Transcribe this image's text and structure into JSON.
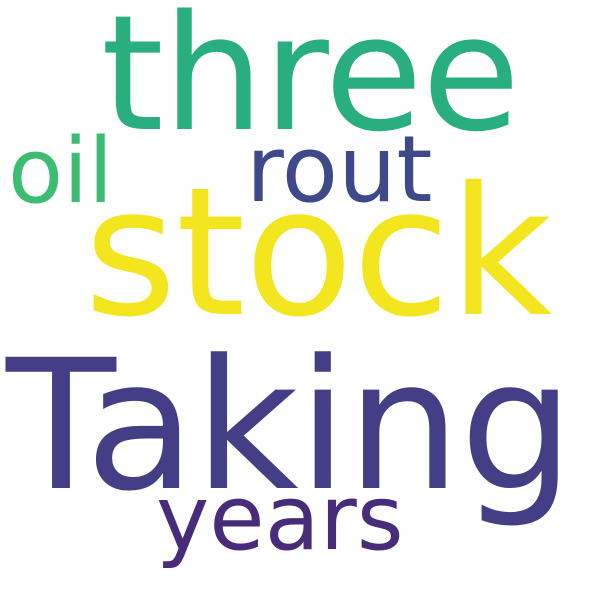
{
  "words": {
    "three": {
      "text": "three",
      "color": "#29af7f"
    },
    "oil": {
      "text": "oil",
      "color": "#3dbc74"
    },
    "rout": {
      "text": "rout",
      "color": "#3e4989"
    },
    "stock": {
      "text": "stock",
      "color": "#f3e51e"
    },
    "taking": {
      "text": "Taking",
      "color": "#433e85"
    },
    "years": {
      "text": "years",
      "color": "#482c7a"
    }
  }
}
